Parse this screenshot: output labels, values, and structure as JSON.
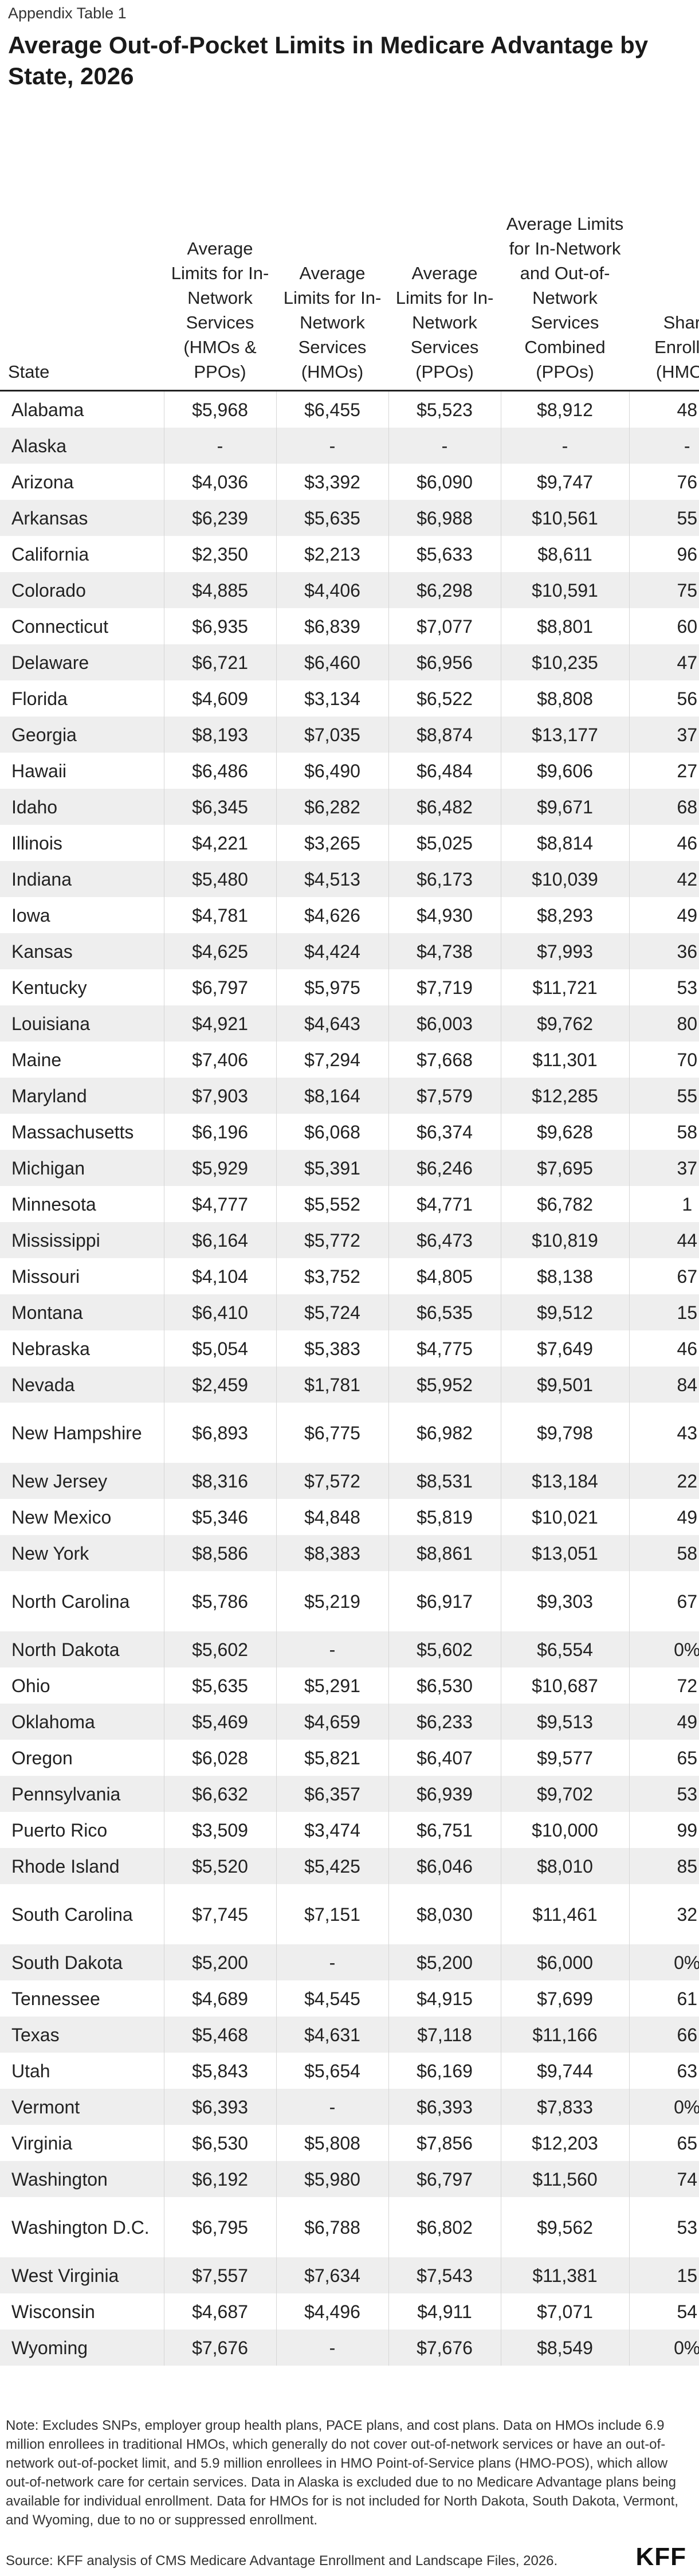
{
  "eyebrow": "Appendix Table 1",
  "title": "Average Out-of-Pocket Limits in Medicare Advantage by State, 2026",
  "columns": {
    "state": "State",
    "c1": "Average Limits for In-Network Services (HMOs & PPOs)",
    "c2": "Average Limits for In-Network Services (HMOs)",
    "c3": "Average Limits for In-Network Services (PPOs)",
    "c4": "Average Limits for In-Network and Out-of-Network Services Combined (PPOs)",
    "c5": "Share Enrolled (HMOs)"
  },
  "rows": [
    {
      "state": "Alabama",
      "c1": "$5,968",
      "c2": "$6,455",
      "c3": "$5,523",
      "c4": "$8,912",
      "c5": "48"
    },
    {
      "state": "Alaska",
      "c1": "-",
      "c2": "-",
      "c3": "-",
      "c4": "-",
      "c5": "-"
    },
    {
      "state": "Arizona",
      "c1": "$4,036",
      "c2": "$3,392",
      "c3": "$6,090",
      "c4": "$9,747",
      "c5": "76"
    },
    {
      "state": "Arkansas",
      "c1": "$6,239",
      "c2": "$5,635",
      "c3": "$6,988",
      "c4": "$10,561",
      "c5": "55"
    },
    {
      "state": "California",
      "c1": "$2,350",
      "c2": "$2,213",
      "c3": "$5,633",
      "c4": "$8,611",
      "c5": "96"
    },
    {
      "state": "Colorado",
      "c1": "$4,885",
      "c2": "$4,406",
      "c3": "$6,298",
      "c4": "$10,591",
      "c5": "75"
    },
    {
      "state": "Connecticut",
      "c1": "$6,935",
      "c2": "$6,839",
      "c3": "$7,077",
      "c4": "$8,801",
      "c5": "60"
    },
    {
      "state": "Delaware",
      "c1": "$6,721",
      "c2": "$6,460",
      "c3": "$6,956",
      "c4": "$10,235",
      "c5": "47"
    },
    {
      "state": "Florida",
      "c1": "$4,609",
      "c2": "$3,134",
      "c3": "$6,522",
      "c4": "$8,808",
      "c5": "56"
    },
    {
      "state": "Georgia",
      "c1": "$8,193",
      "c2": "$7,035",
      "c3": "$8,874",
      "c4": "$13,177",
      "c5": "37"
    },
    {
      "state": "Hawaii",
      "c1": "$6,486",
      "c2": "$6,490",
      "c3": "$6,484",
      "c4": "$9,606",
      "c5": "27"
    },
    {
      "state": "Idaho",
      "c1": "$6,345",
      "c2": "$6,282",
      "c3": "$6,482",
      "c4": "$9,671",
      "c5": "68"
    },
    {
      "state": "Illinois",
      "c1": "$4,221",
      "c2": "$3,265",
      "c3": "$5,025",
      "c4": "$8,814",
      "c5": "46"
    },
    {
      "state": "Indiana",
      "c1": "$5,480",
      "c2": "$4,513",
      "c3": "$6,173",
      "c4": "$10,039",
      "c5": "42"
    },
    {
      "state": "Iowa",
      "c1": "$4,781",
      "c2": "$4,626",
      "c3": "$4,930",
      "c4": "$8,293",
      "c5": "49"
    },
    {
      "state": "Kansas",
      "c1": "$4,625",
      "c2": "$4,424",
      "c3": "$4,738",
      "c4": "$7,993",
      "c5": "36"
    },
    {
      "state": "Kentucky",
      "c1": "$6,797",
      "c2": "$5,975",
      "c3": "$7,719",
      "c4": "$11,721",
      "c5": "53"
    },
    {
      "state": "Louisiana",
      "c1": "$4,921",
      "c2": "$4,643",
      "c3": "$6,003",
      "c4": "$9,762",
      "c5": "80"
    },
    {
      "state": "Maine",
      "c1": "$7,406",
      "c2": "$7,294",
      "c3": "$7,668",
      "c4": "$11,301",
      "c5": "70"
    },
    {
      "state": "Maryland",
      "c1": "$7,903",
      "c2": "$8,164",
      "c3": "$7,579",
      "c4": "$12,285",
      "c5": "55"
    },
    {
      "state": "Massachusetts",
      "c1": "$6,196",
      "c2": "$6,068",
      "c3": "$6,374",
      "c4": "$9,628",
      "c5": "58"
    },
    {
      "state": "Michigan",
      "c1": "$5,929",
      "c2": "$5,391",
      "c3": "$6,246",
      "c4": "$7,695",
      "c5": "37"
    },
    {
      "state": "Minnesota",
      "c1": "$4,777",
      "c2": "$5,552",
      "c3": "$4,771",
      "c4": "$6,782",
      "c5": "1"
    },
    {
      "state": "Mississippi",
      "c1": "$6,164",
      "c2": "$5,772",
      "c3": "$6,473",
      "c4": "$10,819",
      "c5": "44"
    },
    {
      "state": "Missouri",
      "c1": "$4,104",
      "c2": "$3,752",
      "c3": "$4,805",
      "c4": "$8,138",
      "c5": "67"
    },
    {
      "state": "Montana",
      "c1": "$6,410",
      "c2": "$5,724",
      "c3": "$6,535",
      "c4": "$9,512",
      "c5": "15"
    },
    {
      "state": "Nebraska",
      "c1": "$5,054",
      "c2": "$5,383",
      "c3": "$4,775",
      "c4": "$7,649",
      "c5": "46"
    },
    {
      "state": "Nevada",
      "c1": "$2,459",
      "c2": "$1,781",
      "c3": "$5,952",
      "c4": "$9,501",
      "c5": "84"
    },
    {
      "state": "New Hampshire",
      "c1": "$6,893",
      "c2": "$6,775",
      "c3": "$6,982",
      "c4": "$9,798",
      "c5": "43",
      "tall": true
    },
    {
      "state": "New Jersey",
      "c1": "$8,316",
      "c2": "$7,572",
      "c3": "$8,531",
      "c4": "$13,184",
      "c5": "22"
    },
    {
      "state": "New Mexico",
      "c1": "$5,346",
      "c2": "$4,848",
      "c3": "$5,819",
      "c4": "$10,021",
      "c5": "49"
    },
    {
      "state": "New York",
      "c1": "$8,586",
      "c2": "$8,383",
      "c3": "$8,861",
      "c4": "$13,051",
      "c5": "58"
    },
    {
      "state": "North Carolina",
      "c1": "$5,786",
      "c2": "$5,219",
      "c3": "$6,917",
      "c4": "$9,303",
      "c5": "67",
      "tall": true
    },
    {
      "state": "North Dakota",
      "c1": "$5,602",
      "c2": "-",
      "c3": "$5,602",
      "c4": "$6,554",
      "c5": "0%"
    },
    {
      "state": "Ohio",
      "c1": "$5,635",
      "c2": "$5,291",
      "c3": "$6,530",
      "c4": "$10,687",
      "c5": "72"
    },
    {
      "state": "Oklahoma",
      "c1": "$5,469",
      "c2": "$4,659",
      "c3": "$6,233",
      "c4": "$9,513",
      "c5": "49"
    },
    {
      "state": "Oregon",
      "c1": "$6,028",
      "c2": "$5,821",
      "c3": "$6,407",
      "c4": "$9,577",
      "c5": "65"
    },
    {
      "state": "Pennsylvania",
      "c1": "$6,632",
      "c2": "$6,357",
      "c3": "$6,939",
      "c4": "$9,702",
      "c5": "53"
    },
    {
      "state": "Puerto Rico",
      "c1": "$3,509",
      "c2": "$3,474",
      "c3": "$6,751",
      "c4": "$10,000",
      "c5": "99"
    },
    {
      "state": "Rhode Island",
      "c1": "$5,520",
      "c2": "$5,425",
      "c3": "$6,046",
      "c4": "$8,010",
      "c5": "85"
    },
    {
      "state": "South Carolina",
      "c1": "$7,745",
      "c2": "$7,151",
      "c3": "$8,030",
      "c4": "$11,461",
      "c5": "32",
      "tall": true
    },
    {
      "state": "South Dakota",
      "c1": "$5,200",
      "c2": "-",
      "c3": "$5,200",
      "c4": "$6,000",
      "c5": "0%"
    },
    {
      "state": "Tennessee",
      "c1": "$4,689",
      "c2": "$4,545",
      "c3": "$4,915",
      "c4": "$7,699",
      "c5": "61"
    },
    {
      "state": "Texas",
      "c1": "$5,468",
      "c2": "$4,631",
      "c3": "$7,118",
      "c4": "$11,166",
      "c5": "66"
    },
    {
      "state": "Utah",
      "c1": "$5,843",
      "c2": "$5,654",
      "c3": "$6,169",
      "c4": "$9,744",
      "c5": "63"
    },
    {
      "state": "Vermont",
      "c1": "$6,393",
      "c2": "-",
      "c3": "$6,393",
      "c4": "$7,833",
      "c5": "0%"
    },
    {
      "state": "Virginia",
      "c1": "$6,530",
      "c2": "$5,808",
      "c3": "$7,856",
      "c4": "$12,203",
      "c5": "65"
    },
    {
      "state": "Washington",
      "c1": "$6,192",
      "c2": "$5,980",
      "c3": "$6,797",
      "c4": "$11,560",
      "c5": "74"
    },
    {
      "state": "Washington D.C.",
      "c1": "$6,795",
      "c2": "$6,788",
      "c3": "$6,802",
      "c4": "$9,562",
      "c5": "53",
      "tall": true
    },
    {
      "state": "West Virginia",
      "c1": "$7,557",
      "c2": "$7,634",
      "c3": "$7,543",
      "c4": "$11,381",
      "c5": "15"
    },
    {
      "state": "Wisconsin",
      "c1": "$4,687",
      "c2": "$4,496",
      "c3": "$4,911",
      "c4": "$7,071",
      "c5": "54"
    },
    {
      "state": "Wyoming",
      "c1": "$7,676",
      "c2": "-",
      "c3": "$7,676",
      "c4": "$8,549",
      "c5": "0%"
    }
  ],
  "note": "Note: Excludes SNPs, employer group health plans, PACE plans, and cost plans. Data on HMOs include 6.9 million enrollees in traditional HMOs, which generally do not cover out-of-network services or have an out-of-network out-of-pocket limit, and 5.9 million enrollees in HMO Point-of-Service plans (HMO-POS), which allow out-of-network care for certain services. Data in Alaska is excluded due to no Medicare Advantage plans being available for individual enrollment. Data for HMOs for is not included for North Dakota, South Dakota, Vermont, and Wyoming, due to no or suppressed enrollment.",
  "source": "Source: KFF analysis of CMS Medicare Advantage Enrollment and Landscape Files, 2026.",
  "logo": "KFF"
}
